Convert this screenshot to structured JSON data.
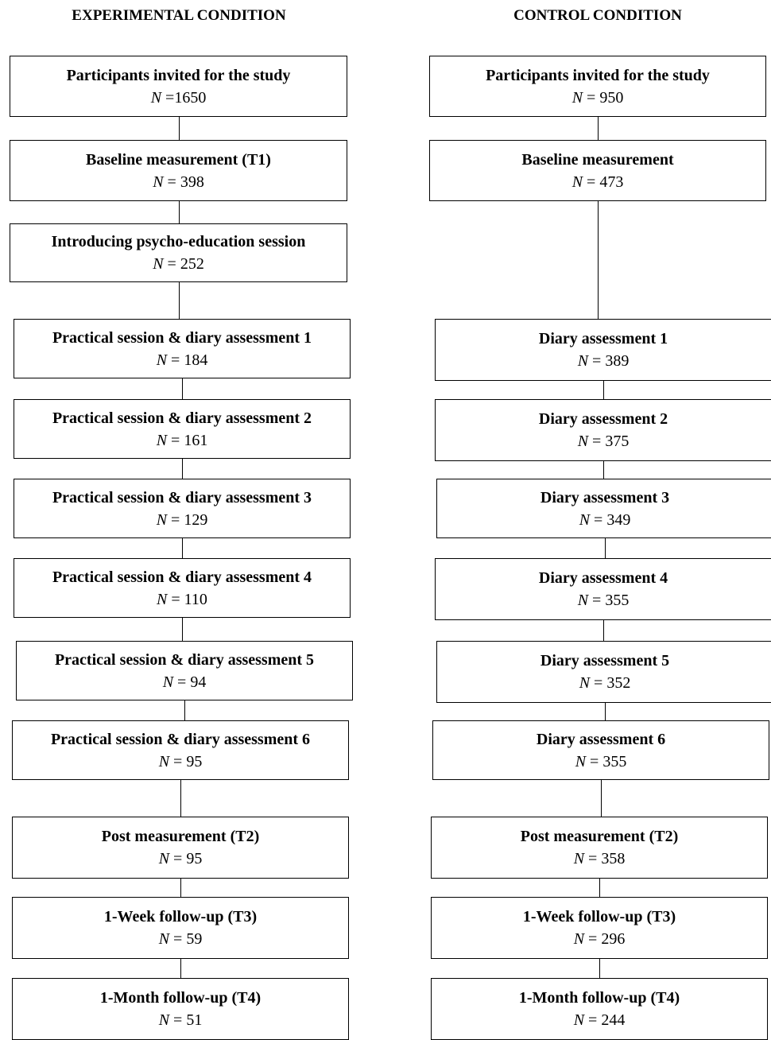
{
  "columns": [
    {
      "title": "EXPERIMENTAL CONDITION",
      "steps": [
        {
          "label": "Participants invited for the study",
          "n_symbol": "N",
          "n_eq": " =",
          "n_value": "1650"
        },
        {
          "label": "Baseline measurement (T1)",
          "n_symbol": "N",
          "n_eq": " = ",
          "n_value": "398"
        },
        {
          "label": "Introducing psycho-education session",
          "n_symbol": "N",
          "n_eq": " = ",
          "n_value": "252"
        },
        {
          "label": "Practical session & diary assessment 1",
          "n_symbol": "N",
          "n_eq": " = ",
          "n_value": "184"
        },
        {
          "label": "Practical session & diary assessment 2",
          "n_symbol": "N",
          "n_eq": " = ",
          "n_value": "161"
        },
        {
          "label": "Practical session & diary assessment 3",
          "n_symbol": "N",
          "n_eq": " = ",
          "n_value": "129"
        },
        {
          "label": "Practical session & diary assessment 4",
          "n_symbol": "N",
          "n_eq": " = ",
          "n_value": "110"
        },
        {
          "label": "Practical session & diary assessment 5",
          "n_symbol": "N",
          "n_eq": " = ",
          "n_value": "94"
        },
        {
          "label": "Practical session & diary assessment 6",
          "n_symbol": "N",
          "n_eq": " = ",
          "n_value": "95"
        },
        {
          "label": "Post measurement (T2)",
          "n_symbol": "N",
          "n_eq": " = ",
          "n_value": "95"
        },
        {
          "label": "1-Week follow-up (T3)",
          "n_symbol": "N",
          "n_eq": " = ",
          "n_value": "59"
        },
        {
          "label": "1-Month follow-up (T4)",
          "n_symbol": "N",
          "n_eq": " = ",
          "n_value": "51"
        }
      ]
    },
    {
      "title": "CONTROL CONDITION",
      "steps": [
        {
          "label": "Participants invited for the study",
          "n_symbol": "N",
          "n_eq": " = ",
          "n_value": "950"
        },
        {
          "label": "Baseline measurement",
          "n_symbol": "N",
          "n_eq": " = ",
          "n_value": "473"
        },
        {
          "label": "Diary assessment 1",
          "n_symbol": "N",
          "n_eq": " = ",
          "n_value": "389"
        },
        {
          "label": "Diary assessment 2",
          "n_symbol": "N",
          "n_eq": " = ",
          "n_value": "375"
        },
        {
          "label": "Diary assessment 3",
          "n_symbol": "N",
          "n_eq": " = ",
          "n_value": "349"
        },
        {
          "label": "Diary assessment 4",
          "n_symbol": "N",
          "n_eq": " = ",
          "n_value": "355"
        },
        {
          "label": "Diary assessment 5",
          "n_symbol": "N",
          "n_eq": " = ",
          "n_value": "352"
        },
        {
          "label": "Diary assessment 6",
          "n_symbol": "N",
          "n_eq": " = ",
          "n_value": "355"
        },
        {
          "label": "Post measurement (T2)",
          "n_symbol": "N",
          "n_eq": " = ",
          "n_value": "358"
        },
        {
          "label": "1-Week follow-up (T3)",
          "n_symbol": "N",
          "n_eq": " = ",
          "n_value": "296"
        },
        {
          "label": "1-Month follow-up (T4)",
          "n_symbol": "N",
          "n_eq": " = ",
          "n_value": "244"
        }
      ]
    }
  ]
}
